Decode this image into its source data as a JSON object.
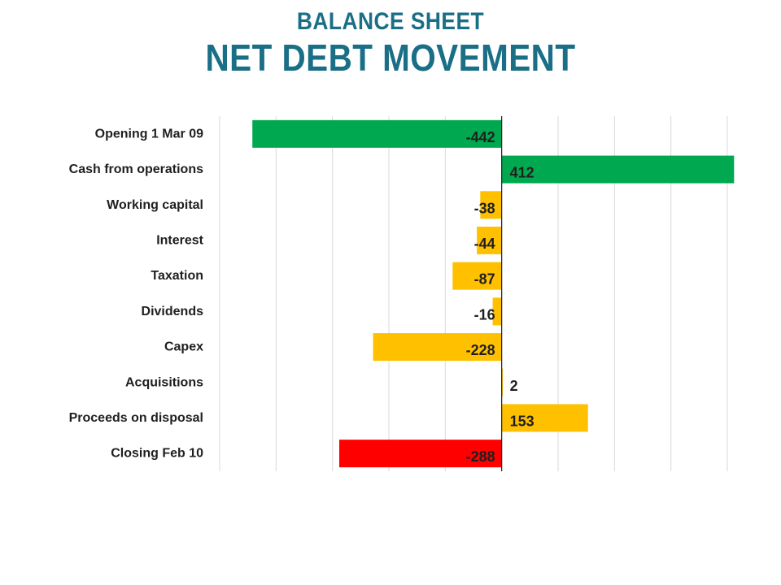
{
  "title": "BALANCE  SHEET",
  "subtitle": "NET DEBT MOVEMENT",
  "chart_data": {
    "type": "bar",
    "orientation": "horizontal",
    "categories": [
      "Opening 1 Mar 09",
      "Cash from operations",
      "Working capital",
      "Interest",
      "Taxation",
      "Dividends",
      "Capex",
      "Acquisitions",
      "Proceeds on disposal",
      "Closing Feb 10"
    ],
    "values": [
      -442,
      412,
      -38,
      -44,
      -87,
      -16,
      -228,
      2,
      153,
      -288
    ],
    "value_labels": [
      "-442",
      "412",
      "-38",
      "-44",
      "-87",
      "-16",
      "-228",
      "2",
      "153",
      "-288"
    ],
    "bar_colors": [
      "#00a94f",
      "#00a94f",
      "#ffc000",
      "#ffc000",
      "#ffc000",
      "#ffc000",
      "#ffc000",
      "#ffc000",
      "#ffc000",
      "#ff0000"
    ],
    "xlim": [
      -500,
      400
    ],
    "grid": true,
    "legend": "none"
  }
}
